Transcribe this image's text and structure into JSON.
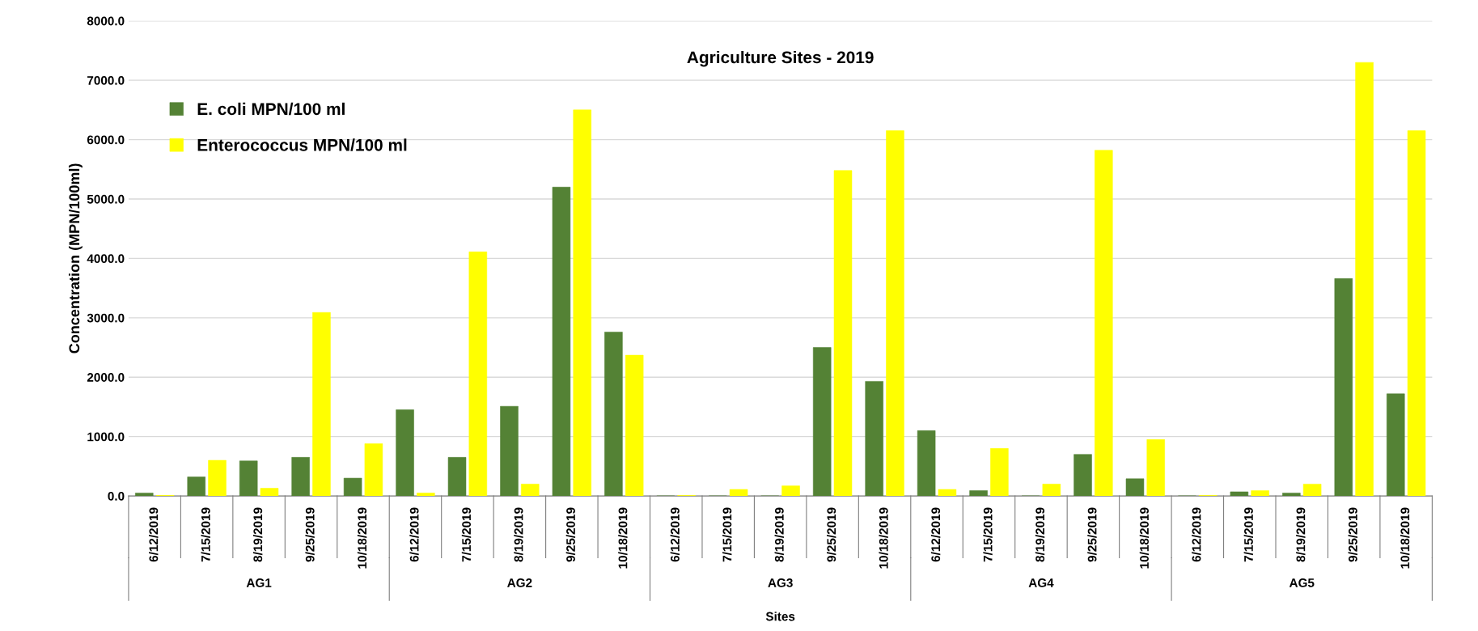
{
  "chart_data": {
    "type": "bar",
    "title": "Agriculture Sites - 2019",
    "xlabel": "Sites",
    "ylabel": "Concentration (MPN/100ml)",
    "categories": [
      "6/12/2019",
      "7/15/2019",
      "8/19/2019",
      "9/25/2019",
      "10/18/2019",
      "6/12/2019",
      "7/15/2019",
      "8/19/2019",
      "9/25/2019",
      "10/18/2019",
      "6/12/2019",
      "7/15/2019",
      "8/19/2019",
      "9/25/2019",
      "10/18/2019",
      "6/12/2019",
      "7/15/2019",
      "8/19/2019",
      "9/25/2019",
      "10/18/2019",
      "6/12/2019",
      "7/15/2019",
      "8/19/2019",
      "9/25/2019",
      "10/18/2019"
    ],
    "annotations": [
      "AG1",
      "AG2",
      "AG3",
      "AG4",
      "AG5"
    ],
    "series": [
      {
        "name": "E. coli MPN/100 ml",
        "color": "#548235",
        "values": [
          50,
          320,
          590,
          650,
          300,
          1450,
          650,
          1510,
          5200,
          2760,
          0,
          0,
          0,
          2500,
          1930,
          1100,
          90,
          0,
          700,
          290,
          0,
          70,
          50,
          3660,
          1720
        ]
      },
      {
        "name": "Enterococcus MPN/100 ml",
        "color": "#ffff00",
        "values": [
          10,
          600,
          130,
          3090,
          880,
          50,
          4110,
          200,
          6500,
          2370,
          10,
          110,
          170,
          5480,
          6150,
          110,
          800,
          200,
          5820,
          950,
          10,
          90,
          200,
          7300,
          6150
        ]
      }
    ],
    "ylim": [
      0,
      8000
    ],
    "yticks": [
      {
        "value": 0,
        "label": "0.0"
      },
      {
        "value": 1000,
        "label": "1000.0"
      },
      {
        "value": 2000,
        "label": "2000.0"
      },
      {
        "value": 3000,
        "label": "3000.0"
      },
      {
        "value": 4000,
        "label": "4000.0"
      },
      {
        "value": 5000,
        "label": "5000.0"
      },
      {
        "value": 6000,
        "label": "6000.0"
      },
      {
        "value": 7000,
        "label": "7000.0"
      },
      {
        "value": 8000,
        "label": "8000.0"
      }
    ],
    "grid": "y",
    "legend": "top left"
  }
}
